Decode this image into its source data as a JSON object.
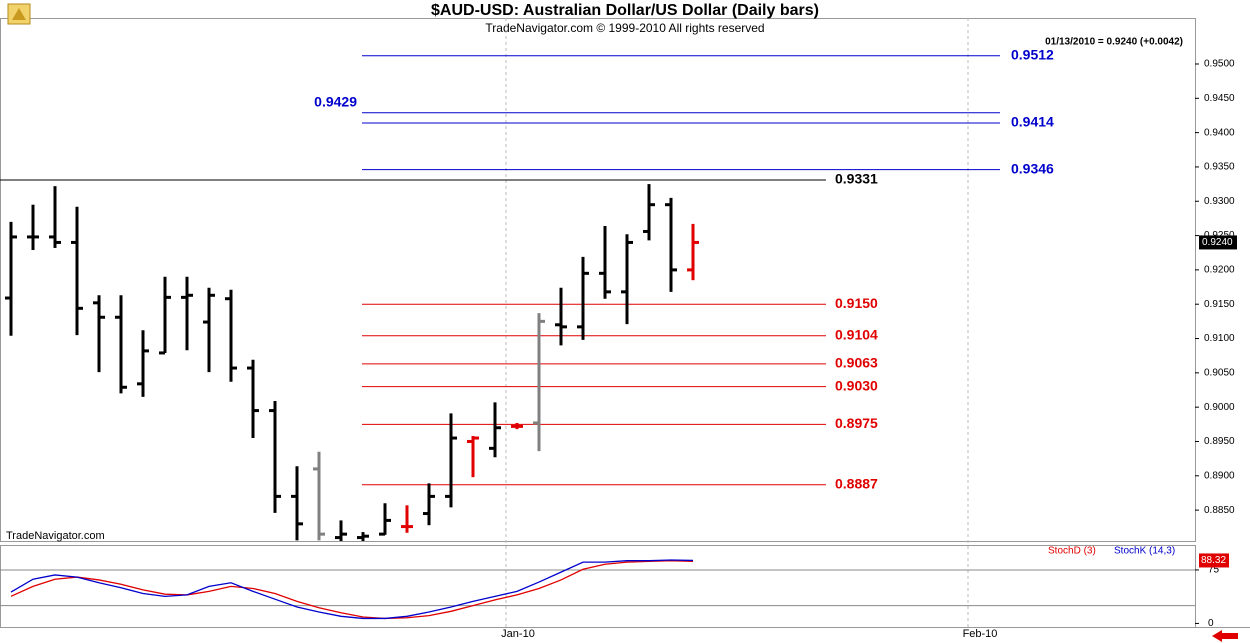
{
  "chart_data": {
    "type": "ohlc",
    "title": "$AUD-USD:  Australian Dollar/US Dollar  (Daily bars)",
    "subtitle": "TradeNavigator.com © 1999-2010 All rights reserved",
    "watermark": "TradeNavigator.com",
    "info": "01/13/2010 = 0.9240 (+0.0042)",
    "last_label": {
      "value": 0.924,
      "label": "0.9240"
    },
    "categories": [
      null,
      null,
      null,
      null,
      null,
      null,
      null,
      null,
      null,
      null,
      null,
      null,
      null,
      null,
      null,
      null,
      null,
      null,
      null,
      null,
      null,
      null,
      null,
      "Jan-10",
      null,
      null,
      null,
      null,
      null,
      null,
      null,
      null,
      null,
      null,
      null,
      null,
      null,
      null,
      null,
      null,
      null,
      null,
      null,
      null,
      "Feb-10",
      null,
      null,
      null,
      null,
      null,
      null,
      null,
      null,
      null
    ],
    "open": [
      0.9159,
      0.9248,
      0.9248,
      0.924,
      0.9152,
      0.9131,
      0.9034,
      0.9079,
      0.916,
      0.9124,
      0.9158,
      0.9057,
      0.8995,
      0.887,
      0.891,
      0.881,
      0.881,
      0.8815,
      0.8826,
      0.8845,
      0.887,
      0.895,
      0.894,
      0.8972,
      0.8977,
      0.912,
      0.9117,
      0.9195,
      0.9168,
      0.9256,
      0.9295,
      0.92,
      null,
      null,
      null,
      null,
      null,
      null,
      null,
      null,
      null,
      null,
      null,
      null,
      null,
      null,
      null,
      null,
      null,
      null,
      null,
      null,
      null,
      null
    ],
    "high": [
      0.927,
      0.9295,
      0.9322,
      0.9292,
      0.9163,
      0.9163,
      0.9112,
      0.919,
      0.919,
      0.9174,
      0.9171,
      0.9069,
      0.9009,
      0.8914,
      0.8935,
      0.8835,
      0.8818,
      0.886,
      0.8857,
      0.8889,
      0.8991,
      0.8958,
      0.9007,
      0.8977,
      0.9137,
      0.9174,
      0.9219,
      0.9264,
      0.9252,
      0.9325,
      0.9305,
      0.9267,
      null,
      null,
      null,
      null,
      null,
      null,
      null,
      null,
      null,
      null,
      null,
      null,
      null,
      null,
      null,
      null,
      null,
      null,
      null,
      null,
      null,
      null
    ],
    "low": [
      0.9104,
      0.9229,
      0.9232,
      0.9105,
      0.9051,
      0.902,
      0.9015,
      0.9079,
      0.9083,
      0.9051,
      0.9037,
      0.8955,
      0.8846,
      0.8806,
      0.8806,
      0.8805,
      0.8805,
      0.8814,
      0.8817,
      0.8828,
      0.8854,
      0.8898,
      0.8927,
      0.8968,
      0.8936,
      0.909,
      0.9098,
      0.9158,
      0.9121,
      0.9243,
      0.9168,
      0.9185,
      null,
      null,
      null,
      null,
      null,
      null,
      null,
      null,
      null,
      null,
      null,
      null,
      null,
      null,
      null,
      null,
      null,
      null,
      null,
      null,
      null,
      null
    ],
    "close": [
      0.9248,
      0.9248,
      0.924,
      0.9144,
      0.9131,
      0.9029,
      0.9082,
      0.916,
      0.9163,
      0.9163,
      0.9057,
      0.8995,
      0.887,
      0.883,
      0.8815,
      0.8815,
      0.8812,
      0.8835,
      0.8826,
      0.887,
      0.8955,
      0.8955,
      0.897,
      0.8972,
      0.9125,
      0.9117,
      0.9195,
      0.9168,
      0.924,
      0.9295,
      0.92,
      0.924,
      null,
      null,
      null,
      null,
      null,
      null,
      null,
      null,
      null,
      null,
      null,
      null,
      null,
      null,
      null,
      null,
      null,
      null,
      null,
      null,
      null,
      null
    ],
    "bar_colors": [
      "#000000",
      "#000000",
      "#000000",
      "#000000",
      "#000000",
      "#000000",
      "#000000",
      "#000000",
      "#000000",
      "#000000",
      "#000000",
      "#000000",
      "#000000",
      "#000000",
      "#808080",
      "#000000",
      "#000000",
      "#000000",
      "#e00000",
      "#000000",
      "#000000",
      "#e00000",
      "#000000",
      "#e00000",
      "#808080",
      "#000000",
      "#000000",
      "#000000",
      "#000000",
      "#000000",
      "#000000",
      "#e00000",
      null,
      null,
      null,
      null,
      null,
      null,
      null,
      null,
      null,
      null,
      null,
      null,
      null,
      null,
      null,
      null,
      null,
      null,
      null,
      null,
      null,
      null
    ],
    "ylim": [
      0.8805,
      0.9567
    ],
    "yticks": [
      {
        "value": 0.885,
        "label": "0.8850"
      },
      {
        "value": 0.89,
        "label": "0.8900"
      },
      {
        "value": 0.895,
        "label": "0.8950"
      },
      {
        "value": 0.9,
        "label": "0.9000"
      },
      {
        "value": 0.905,
        "label": "0.9050"
      },
      {
        "value": 0.91,
        "label": "0.9100"
      },
      {
        "value": 0.915,
        "label": "0.9150"
      },
      {
        "value": 0.92,
        "label": "0.9200"
      },
      {
        "value": 0.925,
        "label": "0.9250"
      },
      {
        "value": 0.93,
        "label": "0.9300"
      },
      {
        "value": 0.935,
        "label": "0.9350"
      },
      {
        "value": 0.94,
        "label": "0.9400"
      },
      {
        "value": 0.945,
        "label": "0.9450"
      },
      {
        "value": 0.95,
        "label": "0.9500"
      }
    ],
    "levels": [
      {
        "value": 0.9512,
        "label": "0.9512",
        "color": "#0000cc"
      },
      {
        "value": 0.9429,
        "label": "0.9429",
        "color": "#0000cc",
        "label_side": "left"
      },
      {
        "value": 0.9414,
        "label": "0.9414",
        "color": "#0000cc"
      },
      {
        "value": 0.9346,
        "label": "0.9346",
        "color": "#0000cc"
      },
      {
        "value": 0.9331,
        "label": "0.9331",
        "color": "#000000"
      },
      {
        "value": 0.915,
        "label": "0.9150",
        "color": "#e00000"
      },
      {
        "value": 0.9104,
        "label": "0.9104",
        "color": "#e00000"
      },
      {
        "value": 0.9063,
        "label": "0.9063",
        "color": "#e00000"
      },
      {
        "value": 0.903,
        "label": "0.9030",
        "color": "#e00000"
      },
      {
        "value": 0.8975,
        "label": "0.8975",
        "color": "#e00000"
      },
      {
        "value": 0.8887,
        "label": "0.8887",
        "color": "#e00000"
      }
    ],
    "stoch": {
      "type": "line",
      "ylim": [
        -5,
        110
      ],
      "yticks": [
        0,
        75
      ],
      "levels": [
        75,
        25
      ],
      "last_label": {
        "value": 88.32,
        "label": "88.32"
      },
      "series": [
        {
          "name": "StochD (3)",
          "color": "#e00000",
          "values": [
            38,
            52,
            62,
            65,
            61,
            55,
            47,
            41,
            40,
            45,
            52,
            49,
            42,
            31,
            22,
            15,
            9,
            7,
            8,
            11,
            17,
            25,
            33,
            40,
            49,
            61,
            76,
            83,
            86,
            87,
            88,
            87,
            null,
            null,
            null,
            null,
            null,
            null,
            null,
            null,
            null,
            null,
            null,
            null,
            null,
            null,
            null,
            null,
            null,
            null,
            null,
            null,
            null,
            null
          ]
        },
        {
          "name": "StochK (14,3)",
          "color": "#0000cc",
          "values": [
            44,
            62,
            68,
            65,
            57,
            50,
            42,
            38,
            40,
            52,
            57,
            45,
            34,
            23,
            16,
            10,
            7,
            7,
            10,
            16,
            23,
            31,
            38,
            45,
            58,
            72,
            86,
            86,
            88,
            88,
            89,
            88.32,
            null,
            null,
            null,
            null,
            null,
            null,
            null,
            null,
            null,
            null,
            null,
            null,
            null,
            null,
            null,
            null,
            null,
            null,
            null,
            null,
            null,
            null
          ]
        }
      ]
    }
  }
}
